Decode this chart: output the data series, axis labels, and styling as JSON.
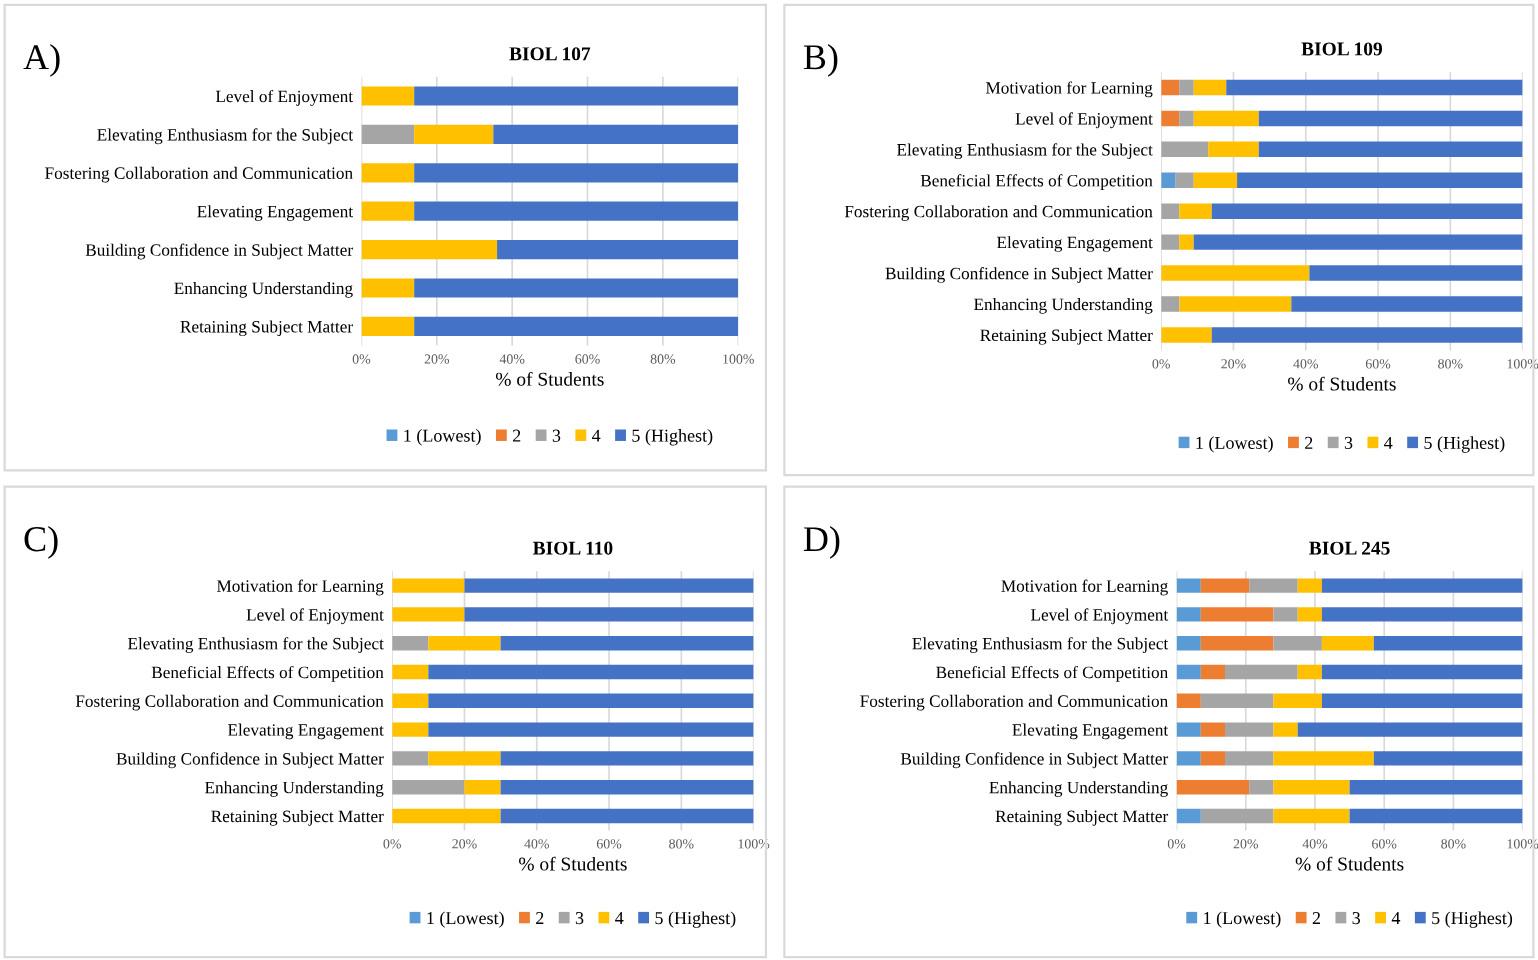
{
  "chart_data": [
    {
      "type": "bar",
      "orientation": "horizontal",
      "stacked": true,
      "title": "BIOL 107",
      "xlabel": "% of Students",
      "annotations": [
        "A)"
      ],
      "categories": [
        "Level of Enjoyment",
        "Elevating Enthusiasm for the Subject",
        "Fostering Collaboration and Communication",
        "Elevating Engagement",
        "Building Confidence in Subject Matter",
        "Enhancing Understanding",
        "Retaining Subject Matter"
      ],
      "series": [
        {
          "name": "1 (Lowest)",
          "color": "#5b9bd5",
          "values": [
            0,
            0,
            0,
            0,
            0,
            0,
            0
          ]
        },
        {
          "name": "2",
          "color": "#ed7d31",
          "values": [
            0,
            0,
            0,
            0,
            0,
            0,
            0
          ]
        },
        {
          "name": "3",
          "color": "#a5a5a5",
          "values": [
            0,
            14,
            0,
            0,
            0,
            0,
            0
          ]
        },
        {
          "name": "4",
          "color": "#ffc000",
          "values": [
            14,
            21,
            14,
            14,
            36,
            14,
            14
          ]
        },
        {
          "name": "5 (Highest)",
          "color": "#4472c4",
          "values": [
            86,
            65,
            86,
            86,
            64,
            86,
            86
          ]
        }
      ],
      "xlim": [
        0,
        100
      ],
      "xticks": [
        {
          "value": 0,
          "label": "0%"
        },
        {
          "value": 20,
          "label": "20%"
        },
        {
          "value": 40,
          "label": "40%"
        },
        {
          "value": 60,
          "label": "60%"
        },
        {
          "value": 80,
          "label": "80%"
        },
        {
          "value": 100,
          "label": "100%"
        }
      ],
      "grid": "x",
      "legend": "bottom"
    },
    {
      "type": "bar",
      "orientation": "horizontal",
      "stacked": true,
      "title": "BIOL 109",
      "xlabel": "% of Students",
      "annotations": [
        "B)"
      ],
      "categories": [
        "Motivation for Learning",
        "Level of Enjoyment",
        "Elevating Enthusiasm for the Subject",
        "Beneficial Effects of Competition",
        "Fostering Collaboration and Communication",
        "Elevating Engagement",
        "Building Confidence in Subject Matter",
        "Enhancing Understanding",
        "Retaining Subject Matter"
      ],
      "series": [
        {
          "name": "1 (Lowest)",
          "color": "#5b9bd5",
          "values": [
            0,
            0,
            0,
            4,
            0,
            0,
            0,
            0,
            0
          ]
        },
        {
          "name": "2",
          "color": "#ed7d31",
          "values": [
            5,
            5,
            0,
            0,
            0,
            0,
            0,
            0,
            0
          ]
        },
        {
          "name": "3",
          "color": "#a5a5a5",
          "values": [
            4,
            4,
            13,
            5,
            5,
            5,
            0,
            5,
            0
          ]
        },
        {
          "name": "4",
          "color": "#ffc000",
          "values": [
            9,
            18,
            14,
            12,
            9,
            4,
            41,
            31,
            14
          ]
        },
        {
          "name": "5 (Highest)",
          "color": "#4472c4",
          "values": [
            82,
            73,
            73,
            79,
            86,
            91,
            59,
            64,
            86
          ]
        }
      ],
      "xlim": [
        0,
        100
      ],
      "xticks": [
        {
          "value": 0,
          "label": "0%"
        },
        {
          "value": 20,
          "label": "20%"
        },
        {
          "value": 40,
          "label": "40%"
        },
        {
          "value": 60,
          "label": "60%"
        },
        {
          "value": 80,
          "label": "80%"
        },
        {
          "value": 100,
          "label": "100%"
        }
      ],
      "grid": "x",
      "legend": "bottom"
    },
    {
      "type": "bar",
      "orientation": "horizontal",
      "stacked": true,
      "title": "BIOL 110",
      "xlabel": "% of Students",
      "annotations": [
        "C)"
      ],
      "categories": [
        "Motivation for Learning",
        "Level of Enjoyment",
        "Elevating Enthusiasm for the Subject",
        "Beneficial Effects of Competition",
        "Fostering Collaboration and Communication",
        "Elevating Engagement",
        "Building Confidence in Subject Matter",
        "Enhancing Understanding",
        "Retaining Subject Matter"
      ],
      "series": [
        {
          "name": "1 (Lowest)",
          "color": "#5b9bd5",
          "values": [
            0,
            0,
            0,
            0,
            0,
            0,
            0,
            0,
            0
          ]
        },
        {
          "name": "2",
          "color": "#ed7d31",
          "values": [
            0,
            0,
            0,
            0,
            0,
            0,
            0,
            0,
            0
          ]
        },
        {
          "name": "3",
          "color": "#a5a5a5",
          "values": [
            0,
            0,
            10,
            0,
            0,
            0,
            10,
            20,
            0
          ]
        },
        {
          "name": "4",
          "color": "#ffc000",
          "values": [
            20,
            20,
            20,
            10,
            10,
            10,
            20,
            10,
            30
          ]
        },
        {
          "name": "5 (Highest)",
          "color": "#4472c4",
          "values": [
            80,
            80,
            70,
            90,
            90,
            90,
            70,
            70,
            70
          ]
        }
      ],
      "xlim": [
        0,
        100
      ],
      "xticks": [
        {
          "value": 0,
          "label": "0%"
        },
        {
          "value": 20,
          "label": "20%"
        },
        {
          "value": 40,
          "label": "40%"
        },
        {
          "value": 60,
          "label": "60%"
        },
        {
          "value": 80,
          "label": "80%"
        },
        {
          "value": 100,
          "label": "100%"
        }
      ],
      "grid": "x",
      "legend": "bottom"
    },
    {
      "type": "bar",
      "orientation": "horizontal",
      "stacked": true,
      "title": "BIOL 245",
      "xlabel": "% of Students",
      "annotations": [
        "D)"
      ],
      "categories": [
        "Motivation for Learning",
        "Level of Enjoyment",
        "Elevating Enthusiasm for the Subject",
        "Beneficial Effects of Competition",
        "Fostering Collaboration and Communication",
        "Elevating Engagement",
        "Building Confidence in Subject Matter",
        "Enhancing Understanding",
        "Retaining Subject Matter"
      ],
      "series": [
        {
          "name": "1 (Lowest)",
          "color": "#5b9bd5",
          "values": [
            7,
            7,
            7,
            7,
            0,
            7,
            7,
            0,
            7
          ]
        },
        {
          "name": "2",
          "color": "#ed7d31",
          "values": [
            14,
            21,
            21,
            7,
            7,
            7,
            7,
            21,
            0
          ]
        },
        {
          "name": "3",
          "color": "#a5a5a5",
          "values": [
            14,
            7,
            14,
            21,
            21,
            14,
            14,
            7,
            21
          ]
        },
        {
          "name": "4",
          "color": "#ffc000",
          "values": [
            7,
            7,
            15,
            7,
            14,
            7,
            29,
            22,
            22
          ]
        },
        {
          "name": "5 (Highest)",
          "color": "#4472c4",
          "values": [
            58,
            58,
            43,
            58,
            58,
            65,
            43,
            50,
            50
          ]
        }
      ],
      "xlim": [
        0,
        100
      ],
      "xticks": [
        {
          "value": 0,
          "label": "0%"
        },
        {
          "value": 20,
          "label": "20%"
        },
        {
          "value": 40,
          "label": "40%"
        },
        {
          "value": 60,
          "label": "60%"
        },
        {
          "value": 80,
          "label": "80%"
        },
        {
          "value": 100,
          "label": "100%"
        }
      ],
      "grid": "x",
      "legend": "bottom"
    }
  ]
}
